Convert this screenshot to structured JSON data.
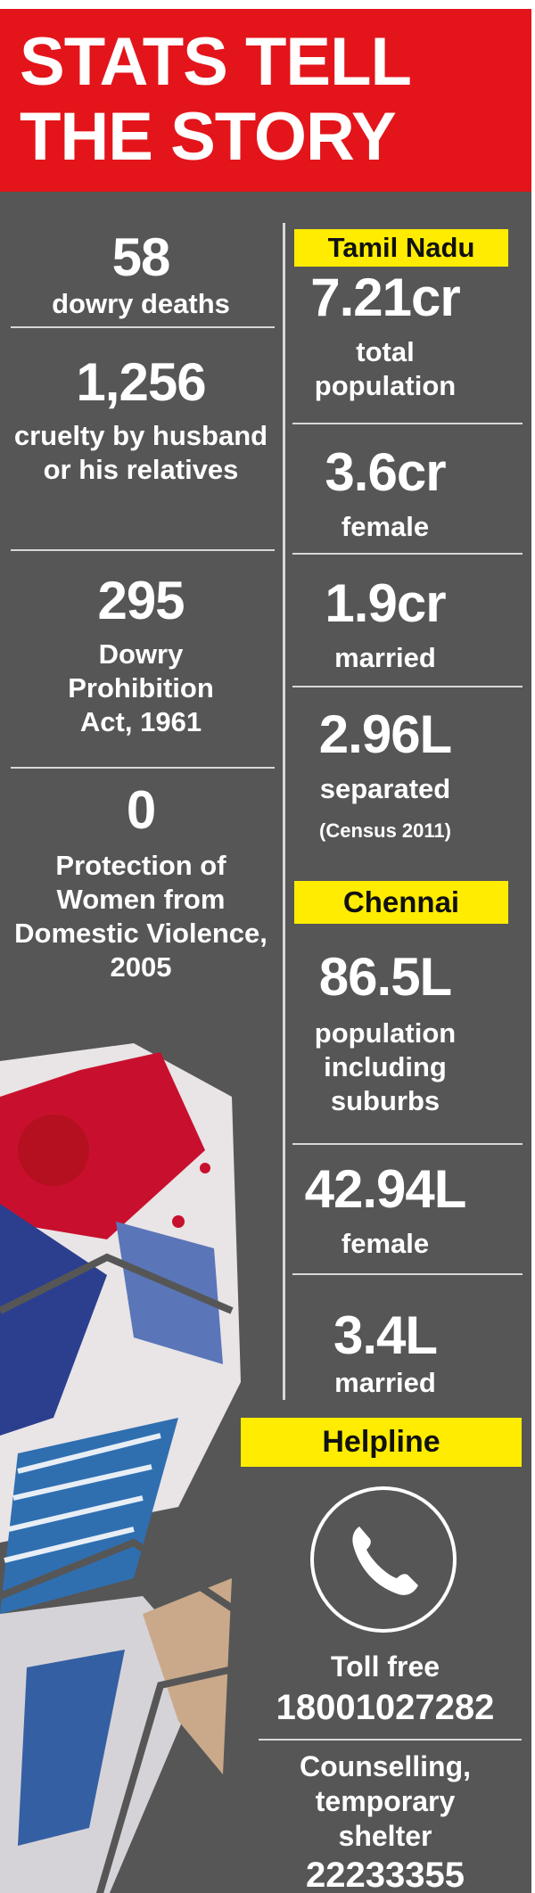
{
  "header": {
    "title": "STATS TELL THE STORY"
  },
  "left_stats": [
    {
      "value": "58",
      "label": "dowry deaths"
    },
    {
      "value": "1,256",
      "label": "cruelty by husband or his relatives"
    },
    {
      "value": "295",
      "label": "Dowry Prohibition Act, 1961"
    },
    {
      "value": "0",
      "label": "Protection of Women from Domestic Violence, 2005"
    }
  ],
  "tamil_nadu": {
    "heading": "Tamil Nadu",
    "stats": [
      {
        "value": "7.21cr",
        "label": "total population"
      },
      {
        "value": "3.6cr",
        "label": "female"
      },
      {
        "value": "1.9cr",
        "label": "married"
      },
      {
        "value": "2.96L",
        "label": "separated"
      }
    ],
    "note": "(Census 2011)"
  },
  "chennai": {
    "heading": "Chennai",
    "stats": [
      {
        "value": "86.5L",
        "label": "population including suburbs"
      },
      {
        "value": "42.94L",
        "label": "female"
      },
      {
        "value": "3.4L",
        "label": "married"
      }
    ]
  },
  "helpline": {
    "heading": "Helpline",
    "items": [
      {
        "label": "Toll free",
        "number": "18001027282"
      },
      {
        "label": "Counselling, temporary shelter",
        "number": "22233355"
      }
    ]
  }
}
